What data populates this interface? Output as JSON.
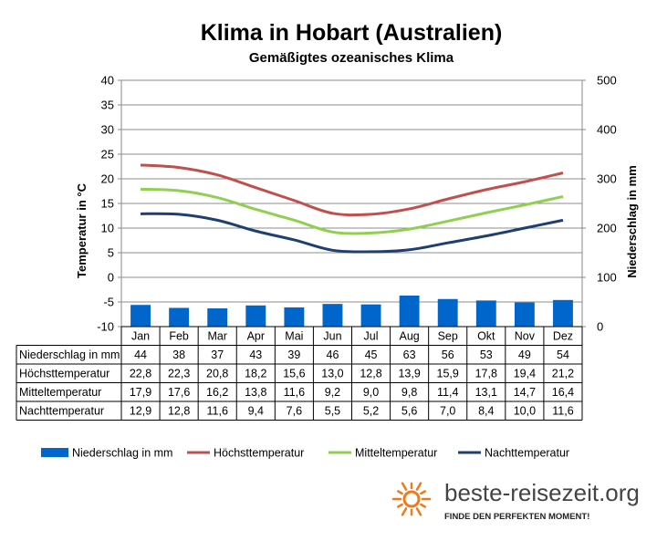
{
  "chart_data": {
    "type": "bar+line",
    "title": "Klima in Hobart (Australien)",
    "subtitle": "Gemäßigtes ozeanisches Klima",
    "categories": [
      "Jan",
      "Feb",
      "Mar",
      "Apr",
      "Mai",
      "Jun",
      "Jul",
      "Aug",
      "Sep",
      "Okt",
      "Nov",
      "Dez"
    ],
    "ylabel_left": "Temperatur in °C",
    "ylabel_right": "Niederschlag in mm",
    "ylim_left": [
      -10,
      40
    ],
    "ylim_right": [
      0,
      500
    ],
    "yticks_left": [
      "40",
      "35",
      "30",
      "25",
      "20",
      "15",
      "10",
      "5",
      "0",
      "-5",
      "-10"
    ],
    "yticks_right": [
      "500",
      "400",
      "300",
      "200",
      "100",
      "0"
    ],
    "grid": true,
    "legend_position": "bottom",
    "series": [
      {
        "name": "Niederschlag in mm",
        "kind": "bar",
        "axis": "right",
        "color": "#0066cc",
        "values": [
          44,
          38,
          37,
          43,
          39,
          46,
          45,
          63,
          56,
          53,
          49,
          54
        ],
        "labels": [
          "44",
          "38",
          "37",
          "43",
          "39",
          "46",
          "45",
          "63",
          "56",
          "53",
          "49",
          "54"
        ]
      },
      {
        "name": "Höchsttemperatur",
        "kind": "line",
        "axis": "left",
        "color": "#c0504d",
        "values": [
          22.8,
          22.3,
          20.8,
          18.2,
          15.6,
          13.0,
          12.8,
          13.9,
          15.9,
          17.8,
          19.4,
          21.2
        ],
        "labels": [
          "22,8",
          "22,3",
          "20,8",
          "18,2",
          "15,6",
          "13,0",
          "12,8",
          "13,9",
          "15,9",
          "17,8",
          "19,4",
          "21,2"
        ]
      },
      {
        "name": "Mitteltemperatur",
        "kind": "line",
        "axis": "left",
        "color": "#8fd14f",
        "values": [
          17.9,
          17.6,
          16.2,
          13.8,
          11.6,
          9.2,
          9.0,
          9.8,
          11.4,
          13.1,
          14.7,
          16.4
        ],
        "labels": [
          "17,9",
          "17,6",
          "16,2",
          "13,8",
          "11,6",
          "9,2",
          "9,0",
          "9,8",
          "11,4",
          "13,1",
          "14,7",
          "16,4"
        ]
      },
      {
        "name": "Nachttemperatur",
        "kind": "line",
        "axis": "left",
        "color": "#1f3f73",
        "values": [
          12.9,
          12.8,
          11.6,
          9.4,
          7.6,
          5.5,
          5.2,
          5.6,
          7.0,
          8.4,
          10.0,
          11.6
        ],
        "labels": [
          "12,9",
          "12,8",
          "11,6",
          "9,4",
          "7,6",
          "5,5",
          "5,2",
          "5,6",
          "7,0",
          "8,4",
          "10,0",
          "11,6"
        ]
      }
    ]
  },
  "branding": {
    "site": "beste-reisezeit.org",
    "tagline": "FINDE DEN PERFEKTEN MOMENT!",
    "logo_color": "#f07a1a"
  }
}
